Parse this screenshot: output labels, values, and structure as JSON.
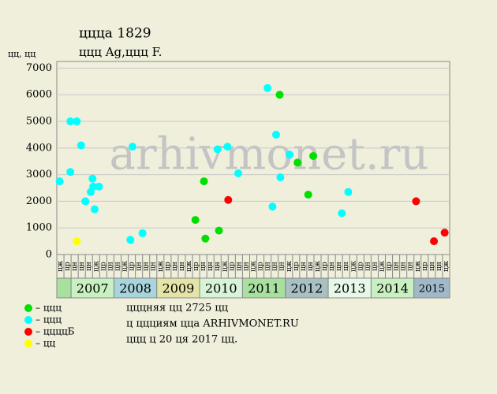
{
  "chart_data": {
    "type": "scatter",
    "title": "ццца 1829",
    "subtitle": "ццц Ag,ццц F.",
    "y_label": "цц, цц",
    "watermark": "arhivmonet.ru",
    "ylim": [
      0,
      7250
    ],
    "yticks": [
      0,
      1000,
      2000,
      3000,
      4000,
      5000,
      6000,
      7000
    ],
    "xlim": [
      0,
      55
    ],
    "grid": true,
    "categories": [
      "цж",
      "цр",
      "цн",
      "цн",
      "цн",
      "цж",
      "цр",
      "цн",
      "цн",
      "цж",
      "цр",
      "цн",
      "цн",
      "цн",
      "цж",
      "цр",
      "цн",
      "цн",
      "цж",
      "цр",
      "цн",
      "цн",
      "цн",
      "цж",
      "цр",
      "цн",
      "цн",
      "цж",
      "цр",
      "цн",
      "цн",
      "цн",
      "цж",
      "цр",
      "цн",
      "цн",
      "цж",
      "цр",
      "цн",
      "цн",
      "цн",
      "цж",
      "цр",
      "цн",
      "цн",
      "цж",
      "цр",
      "цн",
      "цн",
      "цн",
      "цж",
      "цр",
      "цн",
      "цн",
      "цж"
    ],
    "years": [
      {
        "label": "",
        "start": 0,
        "end": 2,
        "color": "#a8e0a0"
      },
      {
        "label": "2007",
        "start": 2,
        "end": 8,
        "color": "#c8f0c0"
      },
      {
        "label": "2008",
        "start": 8,
        "end": 14,
        "color": "#a8d4dc"
      },
      {
        "label": "2009",
        "start": 14,
        "end": 20,
        "color": "#e4e4a8"
      },
      {
        "label": "2010",
        "start": 20,
        "end": 26,
        "color": "#d8f4d8"
      },
      {
        "label": "2011",
        "start": 26,
        "end": 32,
        "color": "#a8e0a0"
      },
      {
        "label": "2012",
        "start": 32,
        "end": 38,
        "color": "#a8c0c4"
      },
      {
        "label": "2013",
        "start": 38,
        "end": 44,
        "color": "#e8f8e8"
      },
      {
        "label": "2014",
        "start": 44,
        "end": 50,
        "color": "#c8f0c0"
      },
      {
        "label": "2015",
        "start": 50,
        "end": 55,
        "color": "#a0b8c8"
      }
    ],
    "series": [
      {
        "name": "– ццц",
        "color": "#00e000",
        "x": [
          19.4,
          20.6,
          20.8,
          22.7,
          31.2,
          33.7,
          35.2,
          35.9
        ],
        "values": [
          1300,
          2750,
          600,
          900,
          6000,
          3450,
          2250,
          3700
        ]
      },
      {
        "name": "– ццц",
        "color": "#00ffff",
        "x": [
          0.4,
          1.9,
          1.9,
          2.8,
          3.4,
          4.0,
          4.75,
          5.0,
          5.1,
          5.3,
          5.9,
          10.3,
          10.6,
          12.0,
          22.5,
          23.9,
          25.4,
          29.5,
          30.2,
          30.7,
          31.3,
          32.6,
          39.9,
          40.8
        ],
        "values": [
          2750,
          3100,
          5000,
          5000,
          4100,
          2000,
          2350,
          2850,
          2550,
          1700,
          2550,
          550,
          4050,
          800,
          3950,
          4050,
          3050,
          6250,
          1800,
          4500,
          2900,
          3750,
          1550,
          2350
        ]
      },
      {
        "name": "– ццццБ",
        "color": "#ff0000",
        "x": [
          24.0,
          50.3,
          52.8,
          54.3
        ],
        "values": [
          2050,
          2000,
          500,
          820
        ]
      },
      {
        "name": "– цц",
        "color": "#ffff00",
        "x": [
          2.8
        ],
        "values": [
          500
        ]
      }
    ],
    "notes": [
      "цццняя цц 2725 цц",
      "ц ццциям цца ARHIVMONET.RU",
      "ццц ц 20 ця 2017 цц."
    ]
  }
}
